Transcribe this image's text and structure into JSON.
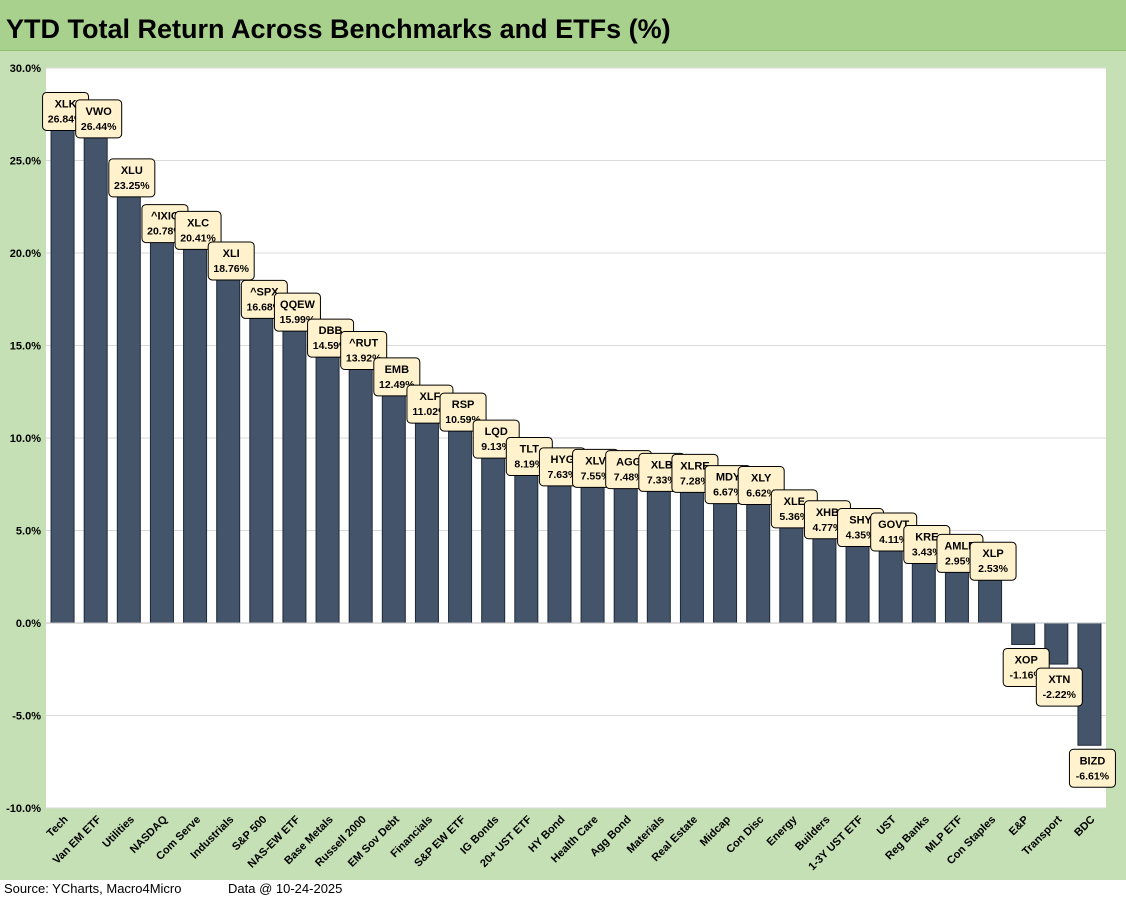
{
  "title": "YTD Total Return Across Benchmarks and ETFs (%)",
  "footer": {
    "source": "Source: YCharts, Macro4Micro",
    "data_date": "Data @ 10-24-2025"
  },
  "colors": {
    "bar": "#44546a",
    "plot_bg": "#ffffff",
    "frame": "#c5e0b4",
    "title_bg": "#a9d18e",
    "label_bg": "#fff2cc",
    "gridline": "#d9d9d9"
  },
  "chart_data": {
    "type": "bar",
    "title": "YTD Total Return Across Benchmarks and ETFs (%)",
    "xlabel": "",
    "ylabel": "",
    "ylim": [
      -10,
      30
    ],
    "yticks": [
      -10,
      -5,
      0,
      5,
      10,
      15,
      20,
      25,
      30
    ],
    "ytick_labels": [
      "-10.0%",
      "-5.0%",
      "0.0%",
      "5.0%",
      "10.0%",
      "15.0%",
      "20.0%",
      "25.0%",
      "30.0%"
    ],
    "grid": true,
    "categories": [
      "Tech",
      "Van EM ETF",
      "Utilities",
      "NASDAQ",
      "Com Serve",
      "Industrials",
      "S&P 500",
      "NAS-EW ETF",
      "Base Metals",
      "Russell 2000",
      "EM Sov Debt",
      "Financials",
      "S&P EW ETF",
      "IG Bonds",
      "20+ UST ETF",
      "HY Bond",
      "Health Care",
      "Agg Bond",
      "Materials",
      "Real Estate",
      "Midcap",
      "Con Disc",
      "Energy",
      "Builders",
      "1-3Y UST ETF",
      "UST",
      "Reg Banks",
      "MLP ETF",
      "Con Staples",
      "E&P",
      "Transport",
      "BDC"
    ],
    "tickers": [
      "XLK",
      "VWO",
      "XLU",
      "^IXIC",
      "XLC",
      "XLI",
      "^SPX",
      "QQEW",
      "DBB",
      "^RUT",
      "EMB",
      "XLF",
      "RSP",
      "LQD",
      "TLT",
      "HYG",
      "XLV",
      "AGG",
      "XLB",
      "XLRE",
      "MDY",
      "XLY",
      "XLE",
      "XHB",
      "SHY",
      "GOVT",
      "KRE",
      "AMLP",
      "XLP",
      "XOP",
      "XTN",
      "BIZD"
    ],
    "values": [
      26.84,
      26.44,
      23.25,
      20.78,
      20.41,
      18.76,
      16.68,
      15.99,
      14.59,
      13.92,
      12.49,
      11.02,
      10.59,
      9.13,
      8.19,
      7.63,
      7.55,
      7.48,
      7.33,
      7.28,
      6.67,
      6.62,
      5.36,
      4.77,
      4.35,
      4.11,
      3.43,
      2.95,
      2.53,
      -1.16,
      -2.22,
      -6.61
    ],
    "data_labels": [
      "26.84%",
      "26.44%",
      "23.25%",
      "20.78%",
      "20.41%",
      "18.76%",
      "16.68%",
      "15.99%",
      "14.59%",
      "13.92%",
      "12.49%",
      "11.02%",
      "10.59%",
      "9.13%",
      "8.19%",
      "7.63%",
      "7.55%",
      "7.48%",
      "7.33%",
      "7.28%",
      "6.67%",
      "6.62%",
      "5.36%",
      "4.77%",
      "4.35%",
      "4.11%",
      "3.43%",
      "2.95%",
      "2.53%",
      "-1.16%",
      "-2.22%",
      "-6.61%"
    ]
  }
}
